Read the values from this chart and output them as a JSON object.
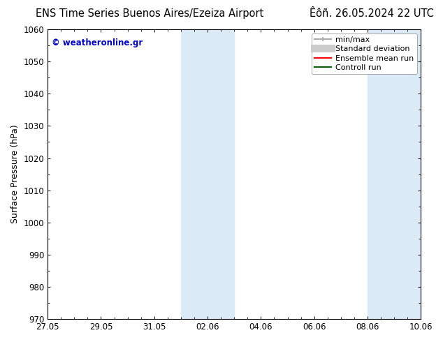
{
  "title_left": "ENS Time Series Buenos Aires/Ezeiza Airport",
  "title_right": "Êôñ. 26.05.2024 22 UTC",
  "ylabel": "Surface Pressure (hPa)",
  "ylim": [
    970,
    1060
  ],
  "yticks": [
    970,
    980,
    990,
    1000,
    1010,
    1020,
    1030,
    1040,
    1050,
    1060
  ],
  "xtick_labels": [
    "27.05",
    "29.05",
    "31.05",
    "02.06",
    "04.06",
    "06.06",
    "08.06",
    "10.06"
  ],
  "watermark": "© weatheronline.gr",
  "watermark_color": "#0000cc",
  "shaded_color": "#daeaf7",
  "legend_entries": [
    {
      "label": "min/max",
      "color": "#aaaaaa",
      "lw": 1.5,
      "linestyle": "-"
    },
    {
      "label": "Standard deviation",
      "color": "#cccccc",
      "lw": 8,
      "linestyle": "-"
    },
    {
      "label": "Ensemble mean run",
      "color": "#ff0000",
      "lw": 1.5,
      "linestyle": "-"
    },
    {
      "label": "Controll run",
      "color": "#006600",
      "lw": 1.5,
      "linestyle": "-"
    }
  ],
  "bg_color": "#ffffff",
  "plot_bg_color": "#ffffff",
  "title_fontsize": 10.5,
  "axis_fontsize": 9,
  "tick_fontsize": 8.5
}
